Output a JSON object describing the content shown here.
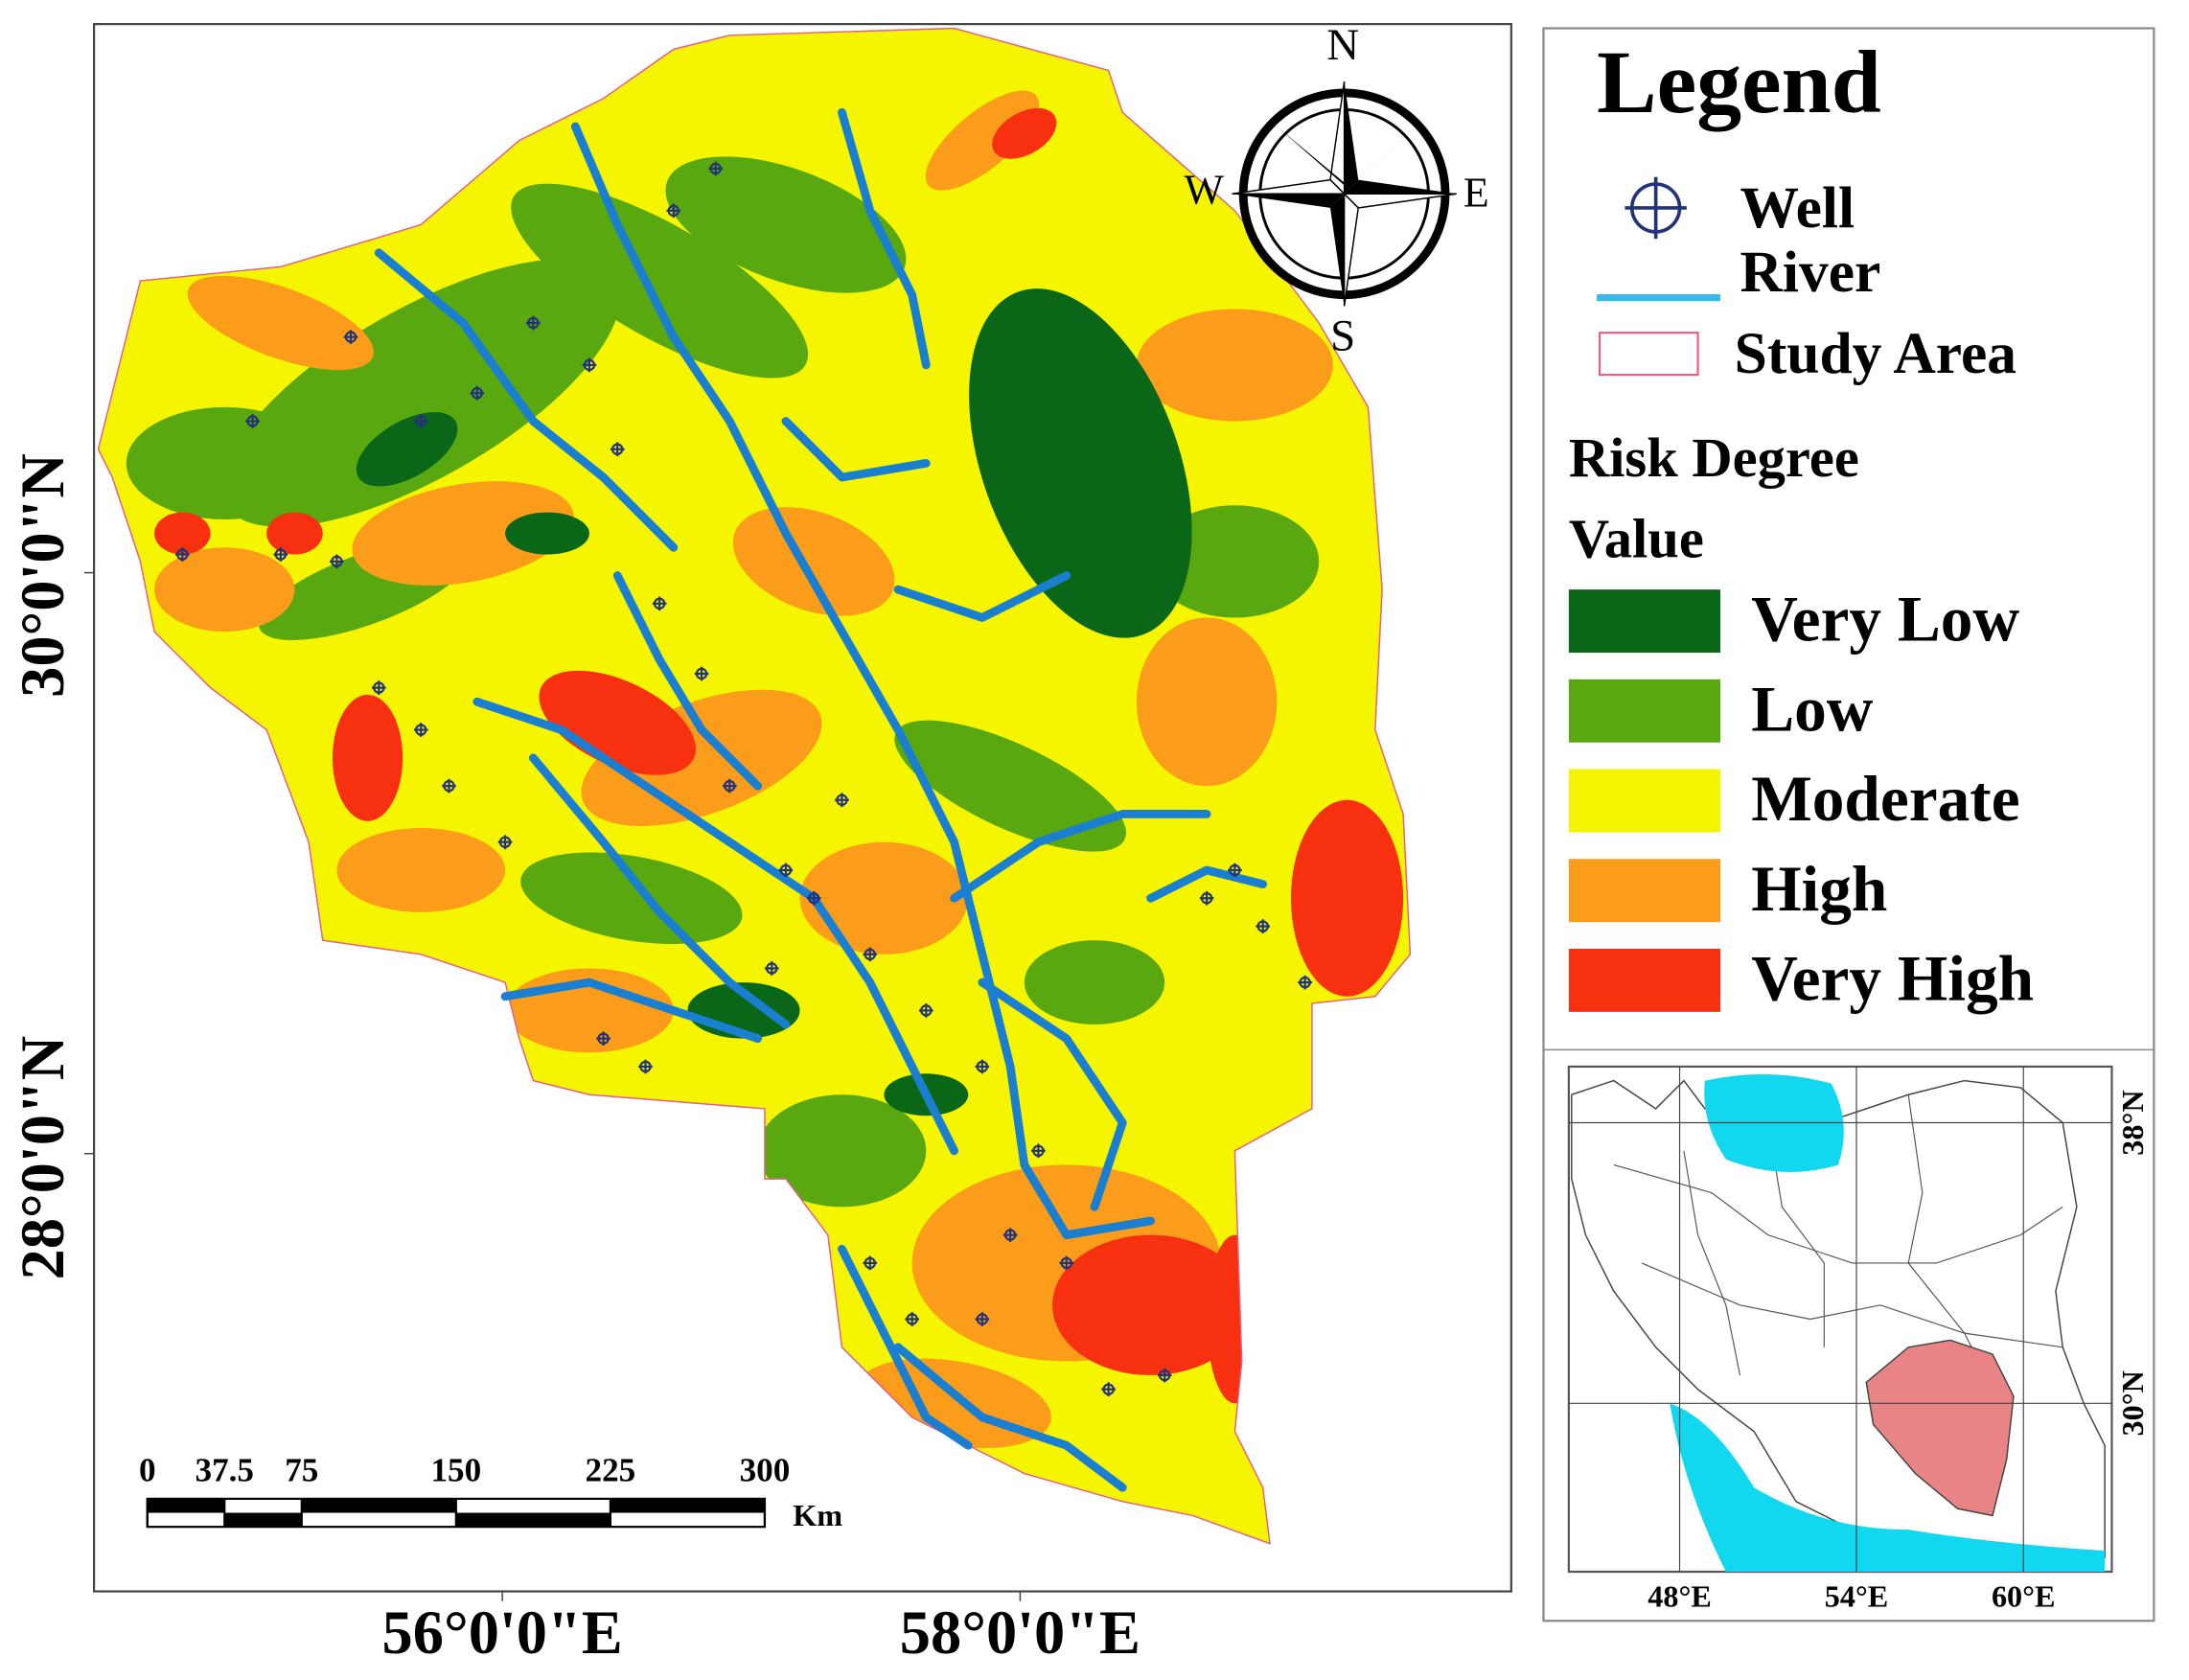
{
  "map": {
    "frame": {
      "lat_labels": [
        "30°0'0\"N",
        "28°0'0\"N"
      ],
      "lon_labels": [
        "56°0'0\"E",
        "58°0'0\"E"
      ]
    },
    "compass": {
      "n": "N",
      "s": "S",
      "w": "W",
      "e": "E"
    },
    "scale_bar": {
      "ticks": [
        0,
        37.5,
        75,
        150,
        225,
        300
      ],
      "unit": "Km"
    },
    "legend": {
      "title": "Legend",
      "symbols": [
        {
          "label": "Well"
        },
        {
          "label": "River"
        },
        {
          "label": "Study Area"
        }
      ],
      "risk_title": "Risk Degree",
      "value_title": "Value",
      "classes": [
        {
          "label": "Very Low",
          "color": "#0b6718"
        },
        {
          "label": "Low",
          "color": "#5aa80f"
        },
        {
          "label": "Moderate",
          "color": "#f5f500"
        },
        {
          "label": "High",
          "color": "#fb9c1a"
        },
        {
          "label": "Very High",
          "color": "#f7300f"
        }
      ]
    },
    "inset": {
      "lon_labels": [
        "48°E",
        "54°E",
        "60°E"
      ],
      "lat_labels": [
        "38°N",
        "30°N"
      ]
    }
  }
}
